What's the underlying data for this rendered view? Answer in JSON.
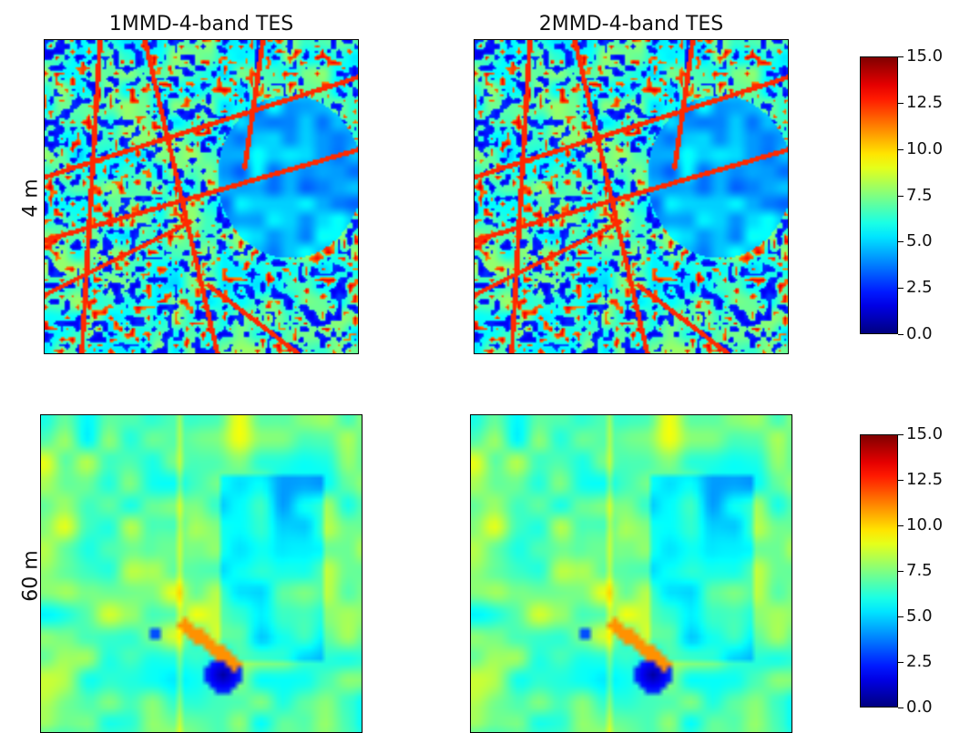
{
  "chart_data": [
    {
      "type": "heatmap",
      "title": "1MMD-4-band TES",
      "row_label": "4 m",
      "colormap": "jet",
      "clim": [
        0.0,
        15.0
      ],
      "colorbar_ticks": [
        "15.0",
        "12.5",
        "10.0",
        "7.5",
        "5.0",
        "2.5",
        "0.0"
      ]
    },
    {
      "type": "heatmap",
      "title": "2MMD-4-band TES",
      "row_label": "4 m",
      "colormap": "jet",
      "clim": [
        0.0,
        15.0
      ],
      "colorbar_ticks": [
        "15.0",
        "12.5",
        "10.0",
        "7.5",
        "5.0",
        "2.5",
        "0.0"
      ]
    },
    {
      "type": "heatmap",
      "title": "",
      "row_label": "60 m",
      "colormap": "jet",
      "clim": [
        0.0,
        15.0
      ],
      "colorbar_ticks": [
        "15.0",
        "12.5",
        "10.0",
        "7.5",
        "5.0",
        "2.5",
        "0.0"
      ]
    },
    {
      "type": "heatmap",
      "title": "",
      "row_label": "60 m",
      "colormap": "jet",
      "clim": [
        0.0,
        15.0
      ],
      "colorbar_ticks": [
        "15.0",
        "12.5",
        "10.0",
        "7.5",
        "5.0",
        "2.5",
        "0.0"
      ]
    }
  ],
  "titles": {
    "left": "1MMD-4-band TES",
    "right": "2MMD-4-band TES"
  },
  "row_labels": {
    "top": "4 m",
    "bottom": "60 m"
  },
  "colorbar": {
    "ticks": [
      "15.0",
      "12.5",
      "10.0",
      "7.5",
      "5.0",
      "2.5",
      "0.0"
    ]
  }
}
